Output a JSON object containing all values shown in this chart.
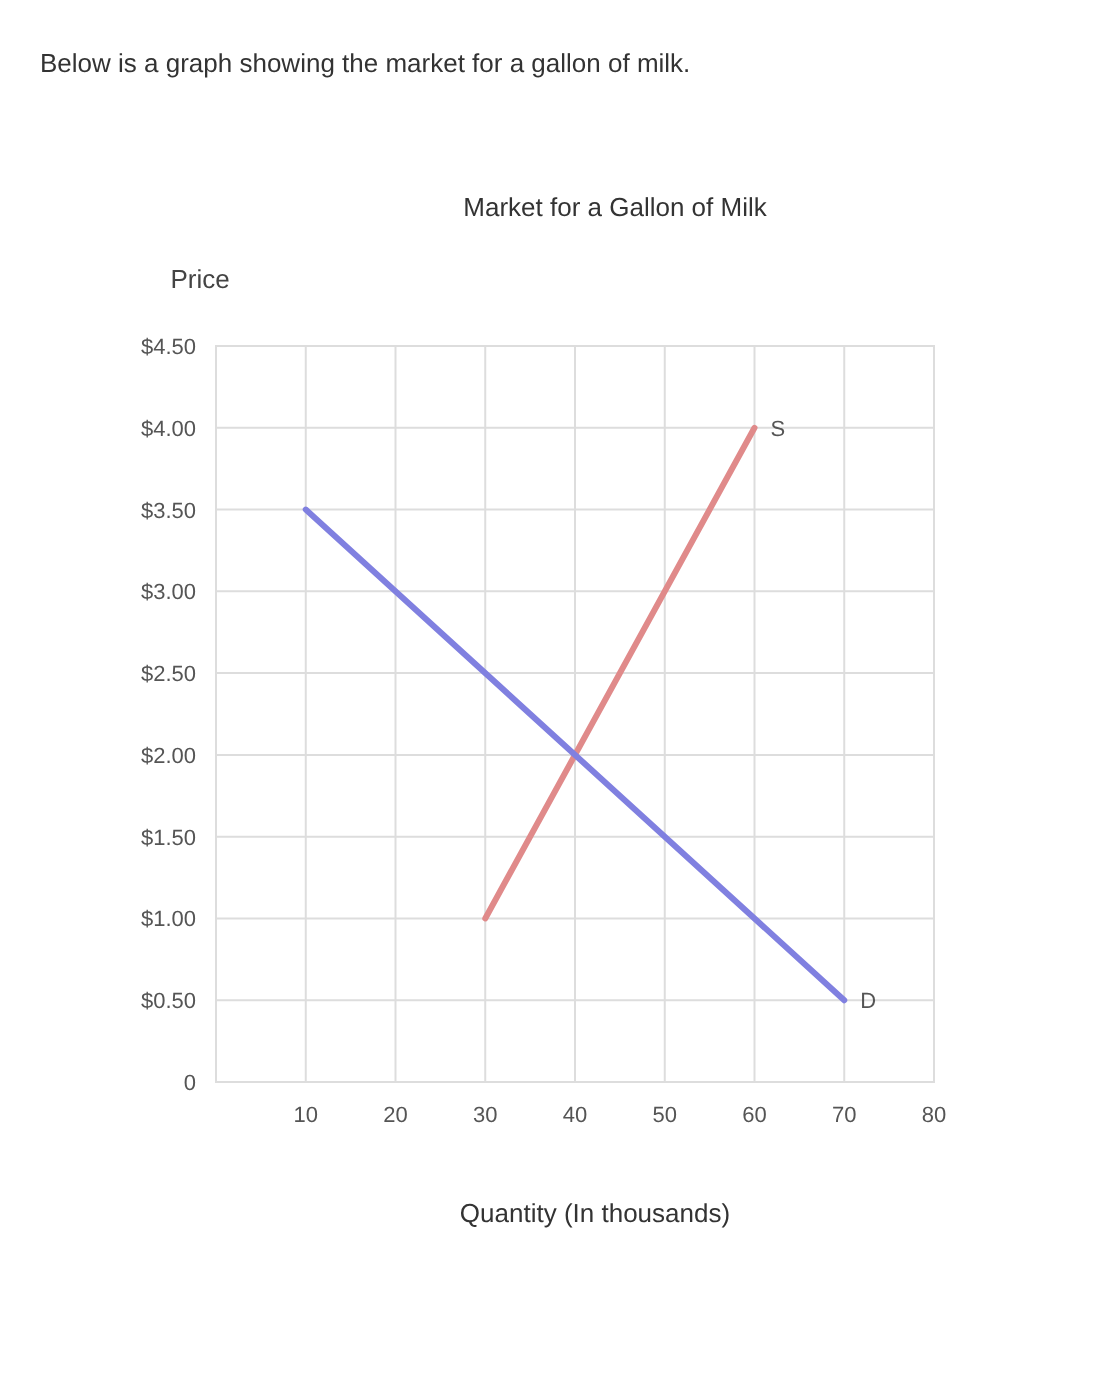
{
  "chart_data": {
    "type": "line",
    "title": "Market for a Gallon of Milk",
    "annotations": [
      "Below is a graph showing the market for a gallon of milk."
    ],
    "xlabel": "Quantity (In thousands)",
    "ylabel": "Price",
    "xlim": [
      0,
      80
    ],
    "xticks": [
      10,
      20,
      30,
      40,
      50,
      60,
      70,
      80
    ],
    "ylim": [
      0,
      4.5
    ],
    "yticks": [
      {
        "value": 0,
        "label": "0"
      },
      {
        "value": 0.5,
        "label": "$0.50"
      },
      {
        "value": 1,
        "label": "$1.00"
      },
      {
        "value": 1.5,
        "label": "$1.50"
      },
      {
        "value": 2,
        "label": "$2.00"
      },
      {
        "value": 2.5,
        "label": "$2.50"
      },
      {
        "value": 3,
        "label": "$3.00"
      },
      {
        "value": 3.5,
        "label": "$3.50"
      },
      {
        "value": 4,
        "label": "$4.00"
      },
      {
        "value": 4.5,
        "label": "$4.50"
      }
    ],
    "grid": true,
    "marker": "none",
    "line_style": "solid",
    "series": [
      {
        "name": "S",
        "color": "#e08a8a",
        "x": [
          30,
          60
        ],
        "values": [
          1,
          4
        ]
      },
      {
        "name": "D",
        "color": "#8080e0",
        "x": [
          10,
          70
        ],
        "values": [
          3.5,
          0.5
        ]
      }
    ]
  }
}
